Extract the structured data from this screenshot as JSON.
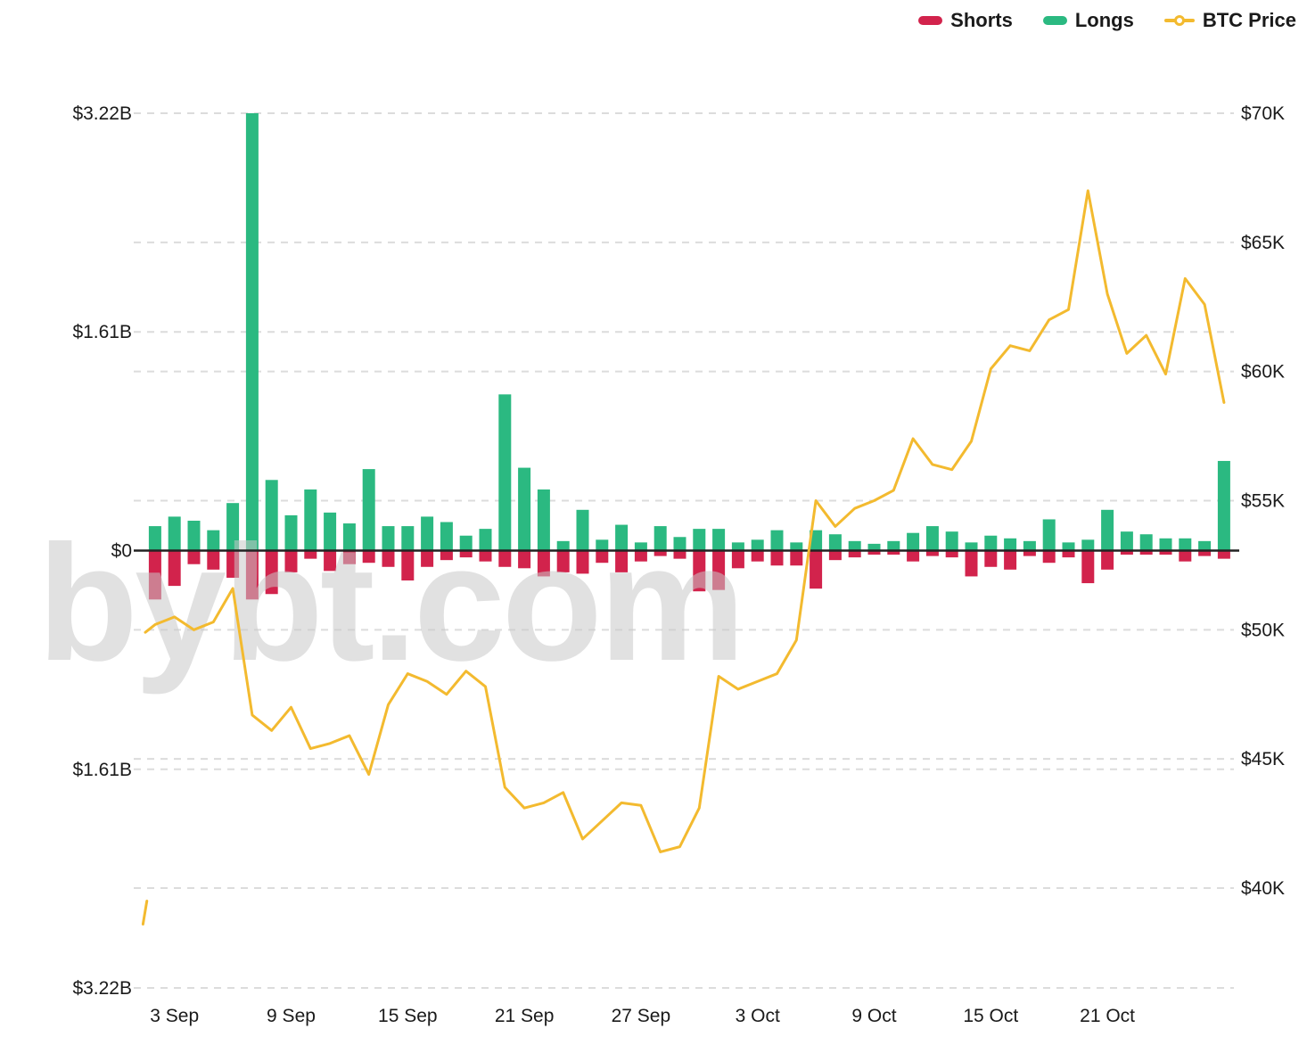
{
  "legend": {
    "shorts_label": "Shorts",
    "longs_label": "Longs",
    "btc_label": "BTC Price"
  },
  "colors": {
    "shorts": "#d2234c",
    "longs": "#2bb981",
    "btc": "#f3ba2f",
    "grid": "#dcdcdc",
    "zero_line": "#222222",
    "axis_text": "#1a1a1a",
    "watermark": "#c8c8c8"
  },
  "watermark_text": "bybt.com",
  "chart_data": {
    "type": "combo-bar-line",
    "title": "",
    "grid": "dashed-horizontal",
    "legend_position": "top-right",
    "dates": [
      "2 Sep",
      "3 Sep",
      "4 Sep",
      "5 Sep",
      "6 Sep",
      "7 Sep",
      "8 Sep",
      "9 Sep",
      "10 Sep",
      "11 Sep",
      "12 Sep",
      "13 Sep",
      "14 Sep",
      "15 Sep",
      "16 Sep",
      "17 Sep",
      "18 Sep",
      "19 Sep",
      "20 Sep",
      "21 Sep",
      "22 Sep",
      "23 Sep",
      "24 Sep",
      "25 Sep",
      "26 Sep",
      "27 Sep",
      "28 Sep",
      "29 Sep",
      "30 Sep",
      "1 Oct",
      "2 Oct",
      "3 Oct",
      "4 Oct",
      "5 Oct",
      "6 Oct",
      "7 Oct",
      "8 Oct",
      "9 Oct",
      "10 Oct",
      "11 Oct",
      "12 Oct",
      "13 Oct",
      "14 Oct",
      "15 Oct",
      "16 Oct",
      "17 Oct",
      "18 Oct",
      "19 Oct",
      "20 Oct",
      "21 Oct",
      "22 Oct",
      "23 Oct",
      "24 Oct",
      "25 Oct",
      "26 Oct",
      "27 Oct"
    ],
    "x_ticks": {
      "labels": [
        "3 Sep",
        "9 Sep",
        "15 Sep",
        "21 Sep",
        "27 Sep",
        "3 Oct",
        "9 Oct",
        "15 Oct",
        "21 Oct"
      ],
      "indices": [
        1,
        7,
        13,
        19,
        25,
        31,
        37,
        43,
        49
      ]
    },
    "series": [
      {
        "name": "Shorts",
        "type": "bar",
        "axis": "left",
        "unit": "$B",
        "values": [
          -0.36,
          -0.26,
          -0.1,
          -0.14,
          -0.2,
          -0.36,
          -0.32,
          -0.16,
          -0.06,
          -0.15,
          -0.1,
          -0.09,
          -0.12,
          -0.22,
          -0.12,
          -0.07,
          -0.05,
          -0.08,
          -0.12,
          -0.13,
          -0.19,
          -0.16,
          -0.17,
          -0.09,
          -0.16,
          -0.08,
          -0.04,
          -0.06,
          -0.3,
          -0.29,
          -0.13,
          -0.08,
          -0.11,
          -0.11,
          -0.28,
          -0.07,
          -0.05,
          -0.03,
          -0.03,
          -0.08,
          -0.04,
          -0.05,
          -0.19,
          -0.12,
          -0.14,
          -0.04,
          -0.09,
          -0.05,
          -0.24,
          -0.14,
          -0.03,
          -0.03,
          -0.03,
          -0.08,
          -0.04,
          -0.06
        ]
      },
      {
        "name": "Longs",
        "type": "bar",
        "axis": "left",
        "unit": "$B",
        "values": [
          0.18,
          0.25,
          0.22,
          0.15,
          0.35,
          3.22,
          0.52,
          0.26,
          0.45,
          0.28,
          0.2,
          0.6,
          0.18,
          0.18,
          0.25,
          0.21,
          0.11,
          0.16,
          1.15,
          0.61,
          0.45,
          0.07,
          0.3,
          0.08,
          0.19,
          0.06,
          0.18,
          0.1,
          0.16,
          0.16,
          0.06,
          0.08,
          0.15,
          0.06,
          0.15,
          0.12,
          0.07,
          0.05,
          0.07,
          0.13,
          0.18,
          0.14,
          0.06,
          0.11,
          0.09,
          0.07,
          0.23,
          0.06,
          0.08,
          0.3,
          0.14,
          0.12,
          0.09,
          0.09,
          0.07,
          0.66
        ]
      },
      {
        "name": "BTC Price",
        "type": "line",
        "axis": "right",
        "unit": "$K",
        "values": [
          50.2,
          50.5,
          50.0,
          50.3,
          51.6,
          46.7,
          46.1,
          47.0,
          45.4,
          45.6,
          45.9,
          44.4,
          47.1,
          48.3,
          48.0,
          47.5,
          48.4,
          47.8,
          43.9,
          43.1,
          43.3,
          43.7,
          41.9,
          42.6,
          43.3,
          43.2,
          41.4,
          41.6,
          43.1,
          48.2,
          47.7,
          48.0,
          48.3,
          49.6,
          55.0,
          54.0,
          54.7,
          55.0,
          55.4,
          57.4,
          56.4,
          56.2,
          57.3,
          60.1,
          61.0,
          60.8,
          62.0,
          62.4,
          67.0,
          63.0,
          60.7,
          61.4,
          59.9,
          63.6,
          62.6,
          58.8
        ]
      }
    ],
    "price_prefix": [
      {
        "offset": -0.5,
        "value": 49.9
      }
    ],
    "start_artifact": {
      "day_offset_from": -0.62,
      "value_from": 38.6,
      "day_offset_to": -0.42,
      "value_to": 39.5
    },
    "left_axis": {
      "tick_labels": [
        "$3.22B",
        "$1.61B",
        "$0",
        "$1.61B",
        "$3.22B"
      ],
      "tick_values": [
        3.22,
        1.61,
        0,
        -1.61,
        -3.22
      ],
      "range": [
        -3.22,
        3.22
      ]
    },
    "right_axis": {
      "tick_labels": [
        "$70K",
        "$65K",
        "$60K",
        "$55K",
        "$50K",
        "$45K",
        "$40K"
      ],
      "tick_values": [
        70,
        65,
        60,
        55,
        50,
        45,
        40
      ],
      "range_top": 70
    }
  }
}
